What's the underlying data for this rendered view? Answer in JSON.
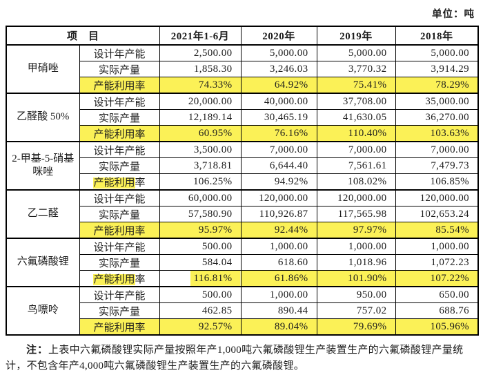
{
  "unit_label": "单位：吨",
  "colors": {
    "highlight": "#FBF157",
    "border": "#000000",
    "text": "#1C1C1C"
  },
  "table": {
    "header": {
      "item": "项　目",
      "years": [
        "2021年1-6月",
        "2020年",
        "2019年",
        "2018年"
      ]
    },
    "groups": [
      {
        "product": "甲硝唑",
        "rows": [
          {
            "label": "设计年产能",
            "values": [
              "2,500.00",
              "5,000.00",
              "5,000.00",
              "5,000.00"
            ]
          },
          {
            "label": "实际产量",
            "values": [
              "1,858.30",
              "3,246.03",
              "3,770.32",
              "3,914.29"
            ]
          },
          {
            "label": "产能利用率",
            "values": [
              "74.33%",
              "64.92%",
              "75.41%",
              "78.29%"
            ],
            "hl": {
              "label": "full",
              "values": [
                "full",
                "full",
                "full",
                "full"
              ]
            }
          }
        ]
      },
      {
        "product": "乙醛酸 50%",
        "rows": [
          {
            "label": "设计年产能",
            "values": [
              "20,000.00",
              "40,000.00",
              "37,708.00",
              "35,000.00"
            ]
          },
          {
            "label": "实际产量",
            "values": [
              "12,189.14",
              "30,465.19",
              "41,630.05",
              "36,270.00"
            ]
          },
          {
            "label": "产能利用率",
            "values": [
              "60.95%",
              "76.16%",
              "110.40%",
              "103.63%"
            ],
            "hl": {
              "label": "full",
              "values": [
                "full",
                "full",
                "full",
                "full"
              ]
            }
          }
        ]
      },
      {
        "product": "2-甲基-5-硝基咪唑",
        "rows": [
          {
            "label": "设计年产能",
            "values": [
              "3,500.00",
              "7,000.00",
              "7,000.00",
              "7,000.00"
            ]
          },
          {
            "label": "实际产量",
            "values": [
              "3,718.81",
              "6,644.40",
              "7,561.61",
              "7,479.73"
            ]
          },
          {
            "label": "产能利用率",
            "label_parts": [
              {
                "text": "产能利用",
                "hl": true
              },
              {
                "text": "率",
                "hl": false
              }
            ],
            "values": [
              "106.25%",
              "94.92%",
              "108.02%",
              "106.85%"
            ],
            "hl": {
              "label": "parts",
              "values": [
                "none",
                "none",
                "none",
                "none"
              ]
            }
          }
        ]
      },
      {
        "product": "乙二醛",
        "rows": [
          {
            "label": "设计年产能",
            "values": [
              "60,000.00",
              "120,000.00",
              "120,000.00",
              "120,000.00"
            ]
          },
          {
            "label": "实际产量",
            "values": [
              "57,580.90",
              "110,926.87",
              "117,565.98",
              "102,653.24"
            ]
          },
          {
            "label": "产能利用率",
            "values": [
              "95.97%",
              "92.44%",
              "97.97%",
              "85.54%"
            ],
            "hl": {
              "label": "full",
              "values": [
                "full",
                "full",
                "full",
                "full"
              ]
            }
          }
        ]
      },
      {
        "product": "六氟磷酸锂",
        "rows": [
          {
            "label": "设计年产能",
            "values": [
              "500.00",
              "1,000.00",
              "1,000.00",
              "1,000.00"
            ]
          },
          {
            "label": "实际产量",
            "values": [
              "584.04",
              "618.60",
              "1,018.96",
              "1,072.23"
            ]
          },
          {
            "label": "产能利用率",
            "label_parts": [
              {
                "text": "产能利用",
                "hl": true
              },
              {
                "text": "率",
                "hl": false
              }
            ],
            "values": [
              "116.81%",
              "61.86%",
              "101.90%",
              "107.22%"
            ],
            "hl": {
              "label": "parts",
              "values": [
                "right",
                "full",
                "full",
                "full"
              ]
            }
          }
        ]
      },
      {
        "product": "鸟嘌呤",
        "rows": [
          {
            "label": "设计年产能",
            "values": [
              "500.00",
              "1,000.00",
              "950.00",
              "650.00"
            ]
          },
          {
            "label": "实际产量",
            "values": [
              "462.85",
              "890.44",
              "757.02",
              "688.76"
            ]
          },
          {
            "label": "产能利用率",
            "values": [
              "92.57%",
              "89.04%",
              "79.69%",
              "105.96%"
            ],
            "hl": {
              "label": "full",
              "values": [
                "full",
                "full",
                "full",
                "full"
              ]
            }
          }
        ]
      }
    ]
  },
  "note": {
    "prefix": "注：",
    "text": "上表中六氟磷酸锂实际产量按照年产1,000吨六氟磷酸锂生产装置生产的六氟磷酸锂产量统计，不包含年产4,000吨六氟磷酸锂生产装置生产的六氟磷酸锂。"
  }
}
